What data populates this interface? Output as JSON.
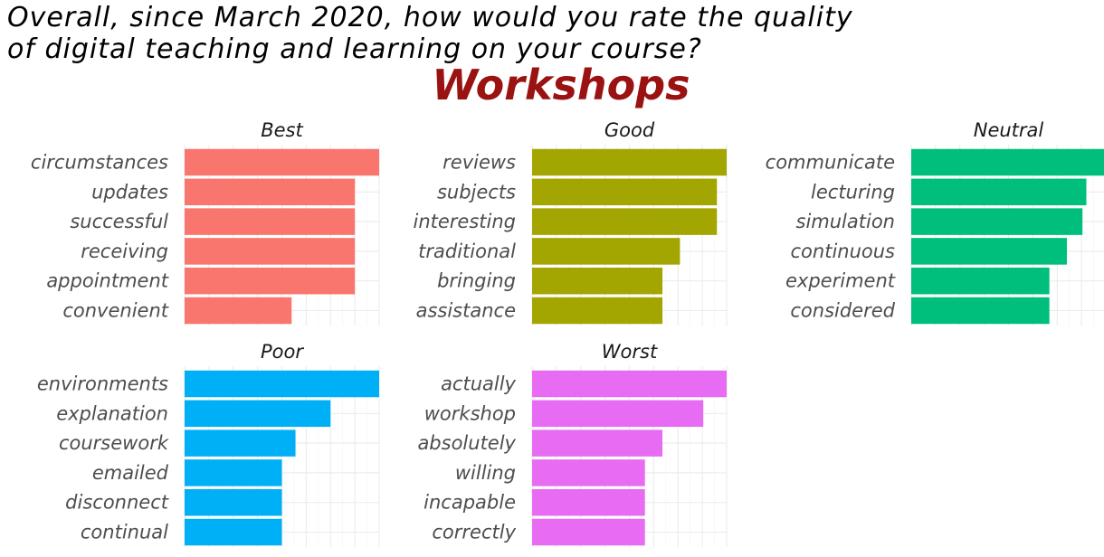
{
  "title_lines": [
    "Overall, since March 2020, how would you rate the quality",
    "of digital teaching and learning on your course?"
  ],
  "subtitle": "Workshops",
  "chart_data": {
    "type": "bar",
    "orientation": "horizontal",
    "title": "Overall, since March 2020, how would you rate the quality of digital teaching and learning on your course?",
    "subtitle": "Workshops",
    "xlim": [
      0,
      1.0
    ],
    "grid": true,
    "legend": "none",
    "facets": [
      {
        "name": "Best",
        "color": "#F8766D",
        "categories": [
          "circumstances",
          "updates",
          "successful",
          "receiving",
          "appointment",
          "convenient"
        ],
        "values": [
          1.0,
          0.875,
          0.875,
          0.875,
          0.875,
          0.55
        ]
      },
      {
        "name": "Good",
        "color": "#A3A500",
        "categories": [
          "reviews",
          "subjects",
          "interesting",
          "traditional",
          "bringing",
          "assistance"
        ],
        "values": [
          1.0,
          0.95,
          0.95,
          0.76,
          0.67,
          0.67
        ]
      },
      {
        "name": "Neutral",
        "color": "#00BF7D",
        "categories": [
          "communicate",
          "lecturing",
          "simulation",
          "continuous",
          "experiment",
          "considered"
        ],
        "values": [
          1.0,
          0.9,
          0.88,
          0.8,
          0.71,
          0.71
        ]
      },
      {
        "name": "Poor",
        "color": "#00B0F6",
        "categories": [
          "environments",
          "explanation",
          "coursework",
          "emailed",
          "disconnect",
          "continual"
        ],
        "values": [
          1.0,
          0.75,
          0.57,
          0.5,
          0.5,
          0.5
        ]
      },
      {
        "name": "Worst",
        "color": "#E76BF3",
        "categories": [
          "actually",
          "workshop",
          "absolutely",
          "willing",
          "incapable",
          "correctly"
        ],
        "values": [
          1.0,
          0.88,
          0.67,
          0.58,
          0.58,
          0.58
        ]
      }
    ]
  }
}
